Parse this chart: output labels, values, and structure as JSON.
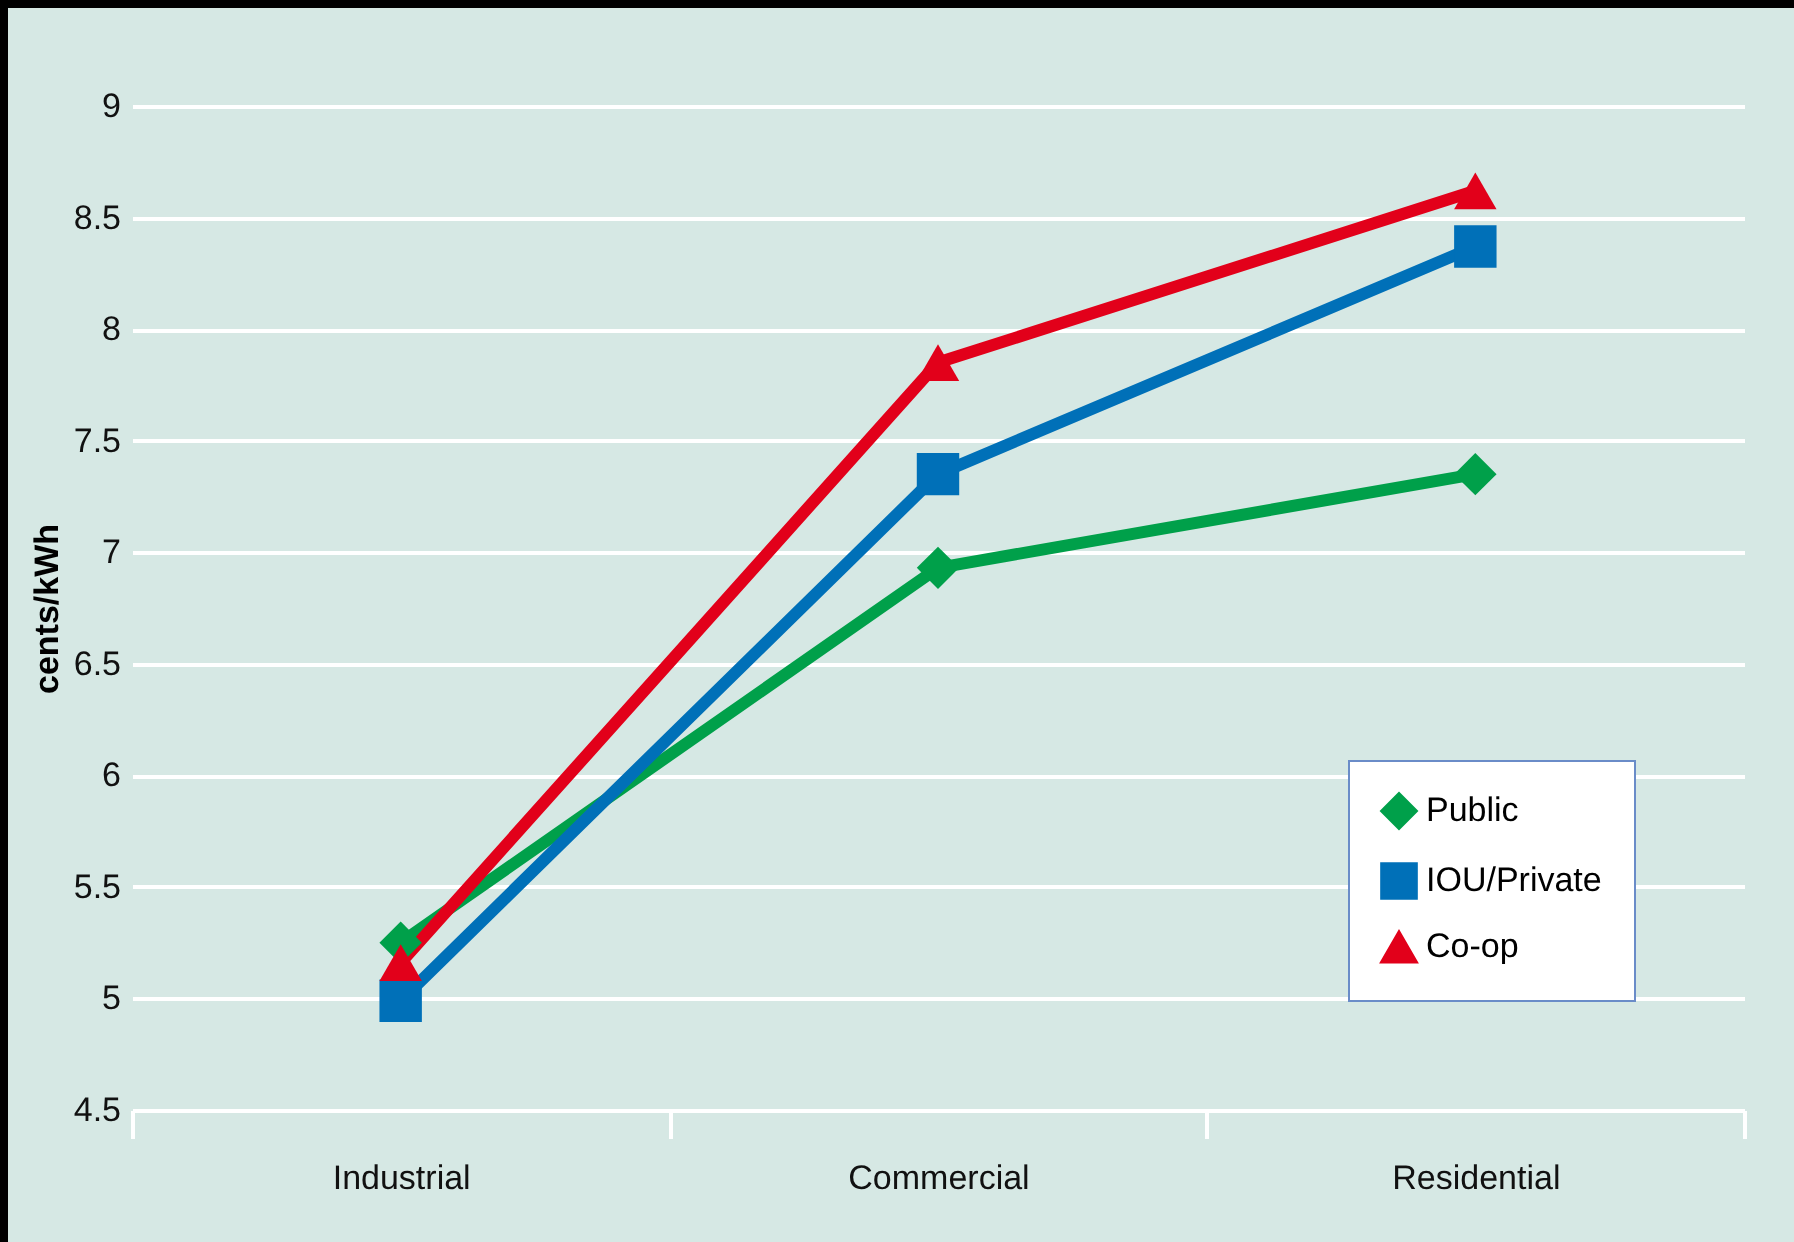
{
  "chart_data": {
    "type": "line",
    "ylabel": "cents/kWh",
    "categories": [
      "Industrial",
      "Commercial",
      "Residential"
    ],
    "series": [
      {
        "name": "Public",
        "color": "#00a04a",
        "marker": "diamond",
        "values": [
          5.25,
          6.93,
          7.35
        ]
      },
      {
        "name": "IOU/Private",
        "color": "#0070b8",
        "marker": "square",
        "values": [
          4.99,
          7.35,
          8.37
        ]
      },
      {
        "name": "Co-op",
        "color": "#e2001a",
        "marker": "triangle",
        "values": [
          5.16,
          7.85,
          8.62
        ]
      }
    ],
    "ylim": [
      4.5,
      9
    ],
    "yticks": [
      4.5,
      5,
      5.5,
      6,
      6.5,
      7,
      7.5,
      8,
      8.5,
      9
    ],
    "grid": "y",
    "legend": "bottom right",
    "line_style": "solid"
  }
}
